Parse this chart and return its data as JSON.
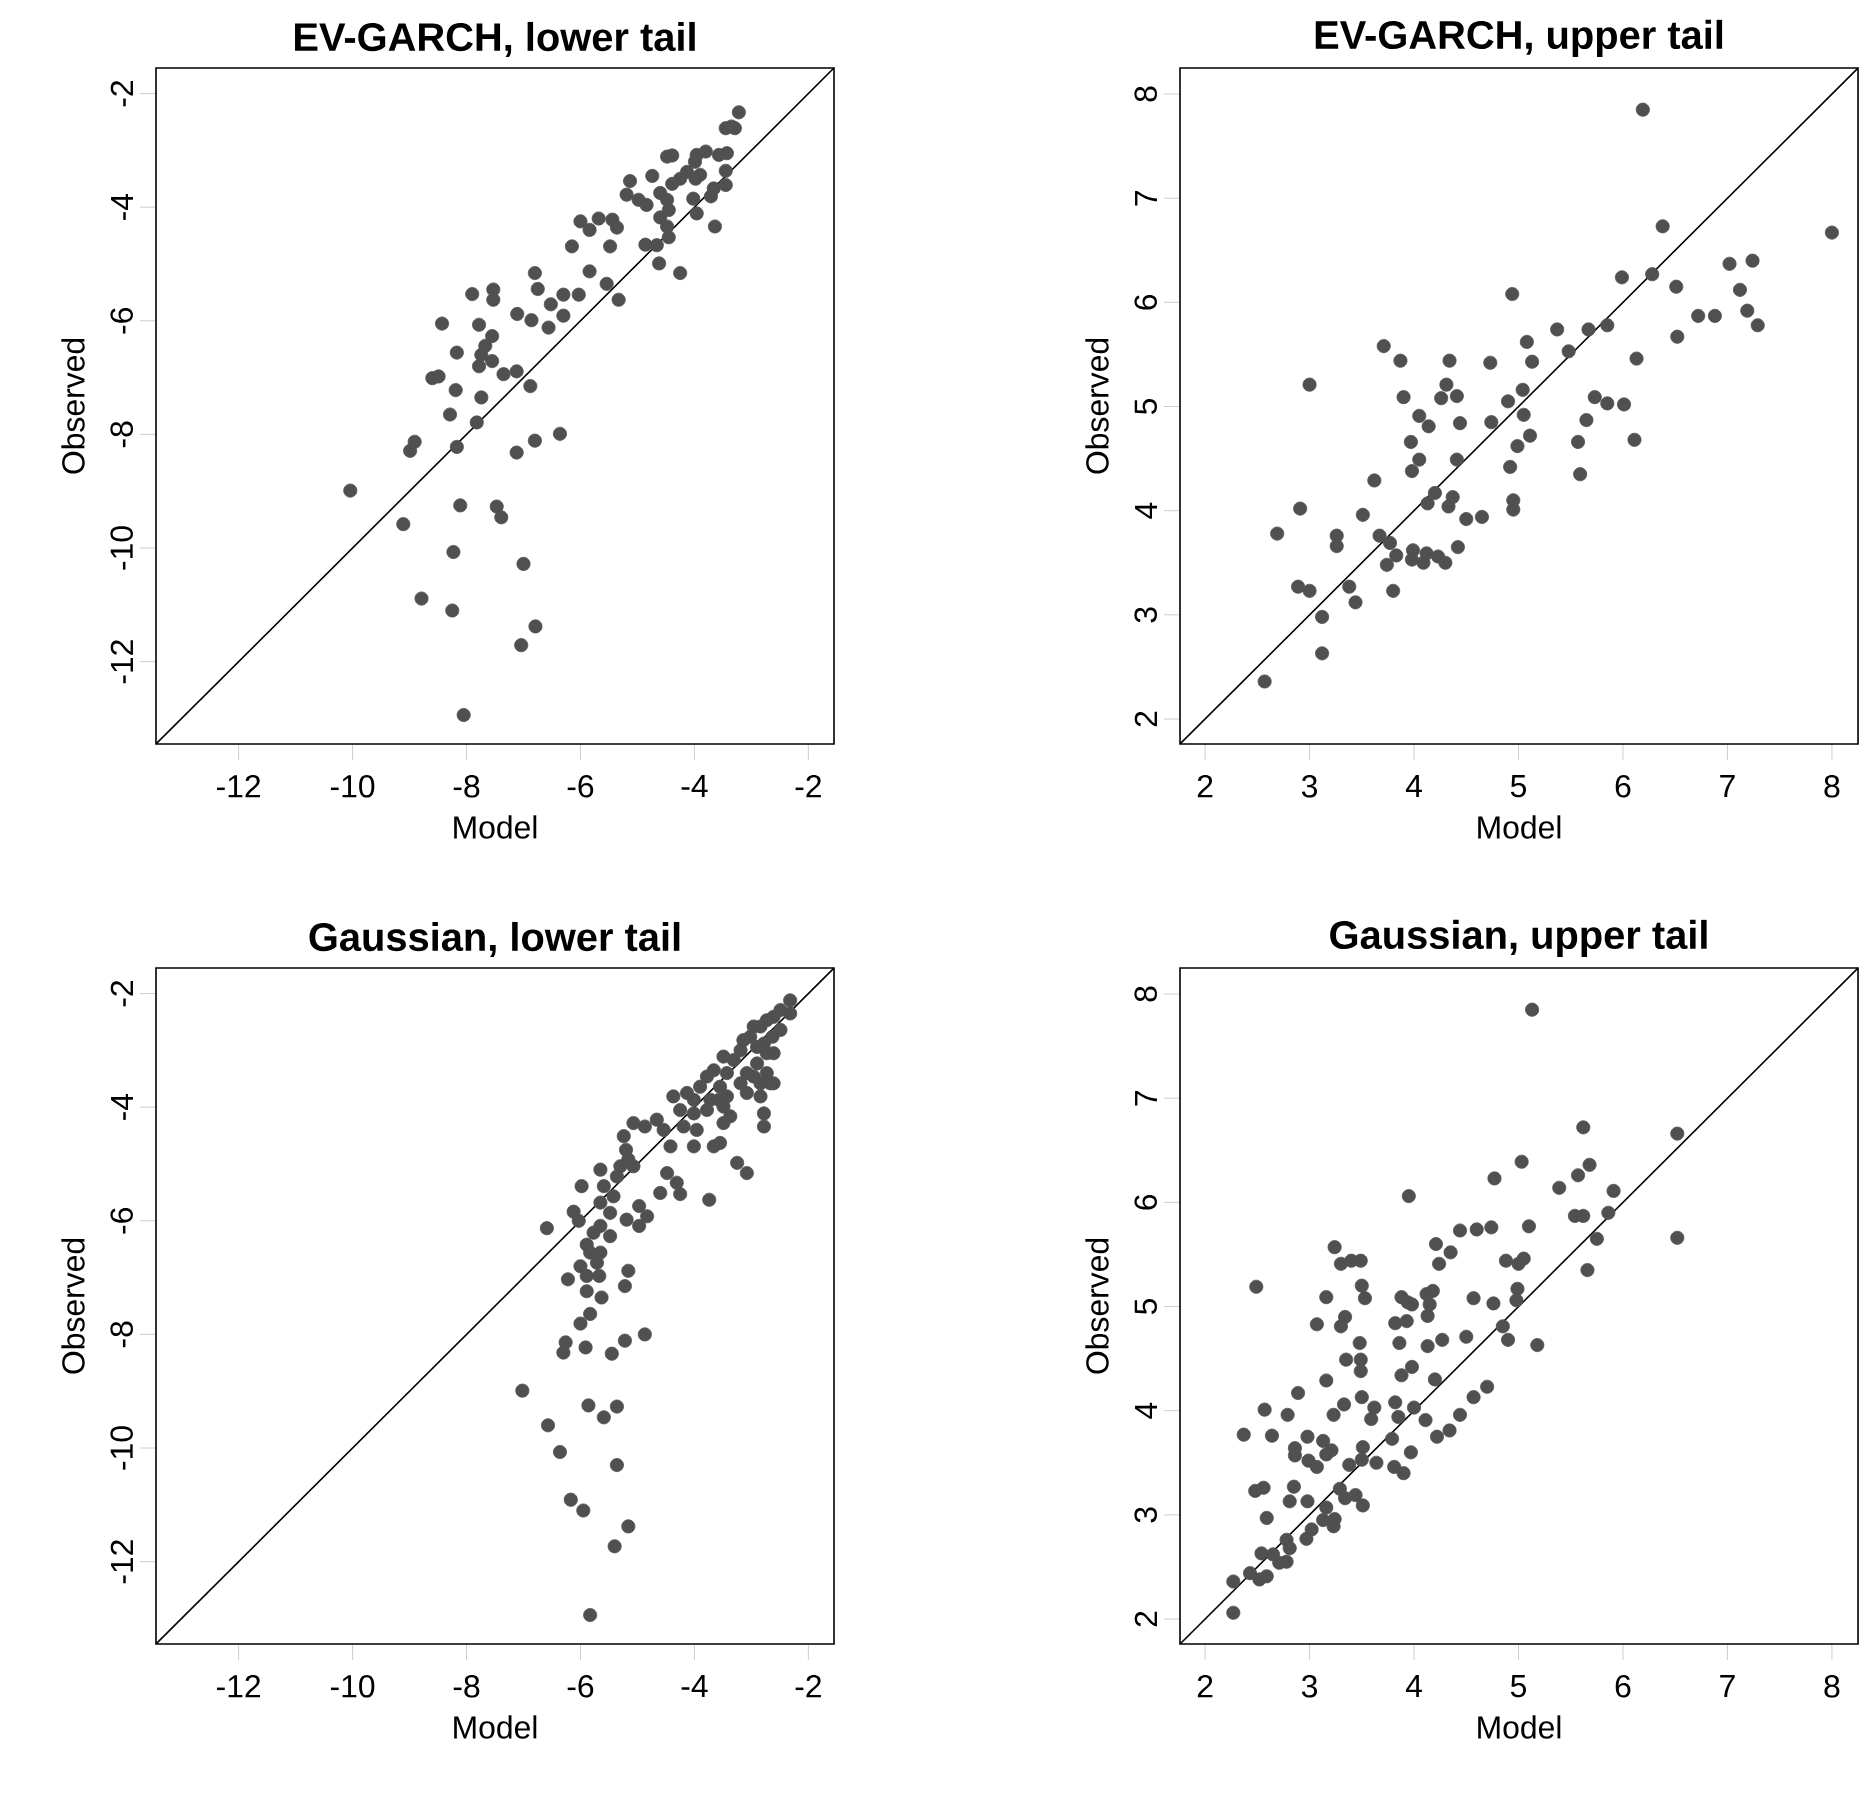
{
  "chart_data": [
    {
      "type": "scatter",
      "title": "EV-GARCH, lower tail",
      "xlabel": "Model",
      "ylabel": "Observed",
      "xlim": [
        -13.45,
        -1.55
      ],
      "ylim": [
        -13.45,
        -1.55
      ],
      "xticks": [
        -12,
        -10,
        -8,
        -6,
        -4,
        -2
      ],
      "yticks": [
        -12,
        -10,
        -8,
        -6,
        -4,
        -2
      ],
      "marker": "circle",
      "series": [
        {
          "color": "#505050",
          "x": [
            -3.22,
            -3.35,
            -3.45,
            -3.29,
            -3.43,
            -3.57,
            -3.8,
            -3.96,
            -3.99,
            -4.48,
            -4.39,
            -4.13,
            -3.9,
            -3.98,
            -4.25,
            -4.39,
            -4.74,
            -5.13,
            -5.19,
            -4.98,
            -4.84,
            -4.6,
            -4.48,
            -4.45,
            -4.02,
            -3.71,
            -3.45,
            -3.66,
            -3.96,
            -3.45,
            -3.64,
            -4.6,
            -4.48,
            -4.45,
            -4.66,
            -4.86,
            -4.62,
            -4.25,
            -6.0,
            -5.84,
            -5.68,
            -5.44,
            -5.36,
            -5.48,
            -6.15,
            -5.84,
            -5.54,
            -5.33,
            -6.03,
            -6.3,
            -6.8,
            -6.75,
            -6.52,
            -6.3,
            -6.56,
            -6.86,
            -7.11,
            -7.53,
            -7.53,
            -7.9,
            -7.78,
            -7.55,
            -7.67,
            -7.74,
            -7.78,
            -7.55,
            -7.35,
            -7.12,
            -8.43,
            -8.17,
            -8.6,
            -8.49,
            -8.19,
            -7.74,
            -6.88,
            -8.29,
            -7.82,
            -6.36,
            -6.8,
            -8.91,
            -8.99,
            -8.17,
            -7.12,
            -10.04,
            -9.11,
            -8.11,
            -7.47,
            -7.39,
            -8.23,
            -7.0,
            -8.79,
            -8.25,
            -6.79,
            -7.04,
            -8.05
          ],
          "values": [
            -2.33,
            -2.58,
            -2.61,
            -2.61,
            -3.05,
            -3.08,
            -3.02,
            -3.08,
            -3.2,
            -3.11,
            -3.09,
            -3.38,
            -3.43,
            -3.5,
            -3.5,
            -3.59,
            -3.45,
            -3.54,
            -3.78,
            -3.87,
            -3.96,
            -3.75,
            -3.87,
            -4.05,
            -3.85,
            -3.81,
            -3.61,
            -3.67,
            -4.11,
            -3.36,
            -4.34,
            -4.18,
            -4.34,
            -4.53,
            -4.67,
            -4.66,
            -4.99,
            -5.16,
            -4.25,
            -4.4,
            -4.2,
            -4.22,
            -4.36,
            -4.69,
            -4.69,
            -5.13,
            -5.35,
            -5.63,
            -5.54,
            -5.54,
            -5.16,
            -5.44,
            -5.71,
            -5.91,
            -6.12,
            -5.99,
            -5.88,
            -5.45,
            -5.63,
            -5.53,
            -6.07,
            -6.27,
            -6.44,
            -6.6,
            -6.8,
            -6.71,
            -6.94,
            -6.89,
            -6.05,
            -6.56,
            -7.01,
            -6.98,
            -7.22,
            -7.35,
            -7.15,
            -7.65,
            -7.79,
            -7.99,
            -8.11,
            -8.13,
            -8.29,
            -8.22,
            -8.32,
            -8.99,
            -9.58,
            -9.25,
            -9.27,
            -9.46,
            -10.07,
            -10.28,
            -10.89,
            -11.1,
            -11.38,
            -11.71,
            -12.94
          ]
        },
        {
          "type": "line",
          "color": "#000000",
          "marker": "none",
          "x": [
            -13.45,
            -1.55
          ],
          "values": [
            -13.45,
            -1.55
          ]
        }
      ]
    },
    {
      "type": "scatter",
      "title": "EV-GARCH, upper tail",
      "xlabel": "Model",
      "ylabel": "Observed",
      "xlim": [
        1.76,
        8.25
      ],
      "ylim": [
        1.76,
        8.25
      ],
      "xticks": [
        2,
        3,
        4,
        5,
        6,
        7,
        8
      ],
      "yticks": [
        2,
        3,
        4,
        5,
        6,
        7,
        8
      ],
      "marker": "circle",
      "series": [
        {
          "color": "#505050",
          "x": [
            6.19,
            6.38,
            8.0,
            7.24,
            7.02,
            6.28,
            5.99,
            6.51,
            7.12,
            4.94,
            7.19,
            6.72,
            6.88,
            7.29,
            5.37,
            5.67,
            5.85,
            5.48,
            5.08,
            5.13,
            4.73,
            6.13,
            6.52,
            3.71,
            3.87,
            4.34,
            3.0,
            4.31,
            4.26,
            4.41,
            3.9,
            5.04,
            4.9,
            5.73,
            5.85,
            6.01,
            4.05,
            4.14,
            4.44,
            4.74,
            5.05,
            5.11,
            4.99,
            5.65,
            5.57,
            6.11,
            5.59,
            3.97,
            4.05,
            3.98,
            4.41,
            4.92,
            3.62,
            4.2,
            4.13,
            4.37,
            4.33,
            4.95,
            4.95,
            4.65,
            4.5,
            3.51,
            2.91,
            2.69,
            3.26,
            3.67,
            3.77,
            3.83,
            3.74,
            3.26,
            3.99,
            3.98,
            4.09,
            4.12,
            4.23,
            4.3,
            4.42,
            2.89,
            3.0,
            3.38,
            3.44,
            3.8,
            3.12,
            3.12,
            2.57
          ],
          "values": [
            7.85,
            6.73,
            6.67,
            6.4,
            6.37,
            6.27,
            6.24,
            6.15,
            6.12,
            6.08,
            5.92,
            5.87,
            5.87,
            5.78,
            5.74,
            5.74,
            5.78,
            5.53,
            5.62,
            5.43,
            5.42,
            5.46,
            5.67,
            5.58,
            5.44,
            5.44,
            5.21,
            5.21,
            5.08,
            5.1,
            5.09,
            5.16,
            5.05,
            5.09,
            5.03,
            5.02,
            4.91,
            4.81,
            4.84,
            4.85,
            4.92,
            4.72,
            4.62,
            4.87,
            4.66,
            4.68,
            4.35,
            4.66,
            4.49,
            4.38,
            4.49,
            4.42,
            4.29,
            4.17,
            4.07,
            4.13,
            4.04,
            4.1,
            4.01,
            3.94,
            3.92,
            3.96,
            4.02,
            3.78,
            3.76,
            3.76,
            3.69,
            3.57,
            3.48,
            3.66,
            3.62,
            3.53,
            3.5,
            3.59,
            3.56,
            3.5,
            3.65,
            3.27,
            3.23,
            3.27,
            3.12,
            3.23,
            2.98,
            2.63,
            2.36
          ]
        },
        {
          "type": "line",
          "color": "#000000",
          "marker": "none",
          "x": [
            1.76,
            8.25
          ],
          "values": [
            1.76,
            8.25
          ]
        }
      ]
    },
    {
      "type": "scatter",
      "title": "Gaussian, lower tail",
      "xlabel": "Model",
      "ylabel": "Observed",
      "xlim": [
        -13.45,
        -1.55
      ],
      "ylim": [
        -13.45,
        -1.55
      ],
      "xticks": [
        -12,
        -10,
        -8,
        -6,
        -4,
        -2
      ],
      "yticks": [
        -12,
        -10,
        -8,
        -6,
        -4,
        -2
      ],
      "marker": "circle",
      "series": [
        {
          "color": "#505050",
          "x": [
            -2.32,
            -2.32,
            -2.49,
            -2.61,
            -2.73,
            -2.84,
            -2.96,
            -3.02,
            -3.14,
            -2.49,
            -2.63,
            -2.78,
            -2.61,
            -2.73,
            -2.9,
            -3.19,
            -3.31,
            -3.49,
            -2.9,
            -3.08,
            -2.73,
            -2.67,
            -2.84,
            -2.96,
            -2.84,
            -3.08,
            -3.19,
            -3.43,
            -3.66,
            -3.78,
            -3.9,
            -3.55,
            -3.43,
            -3.57,
            -3.72,
            -3.49,
            -3.37,
            -3.78,
            -4.01,
            -4.01,
            -4.13,
            -4.37,
            -4.25,
            -4.19,
            -3.96,
            -3.49,
            -3.55,
            -3.66,
            -4.01,
            -4.42,
            -4.54,
            -4.66,
            -4.87,
            -5.07,
            -3.25,
            -3.08,
            -2.78,
            -2.78,
            -2.61,
            -4.48,
            -4.31,
            -4.25,
            -4.6,
            -3.74,
            -5.24,
            -5.2,
            -5.16,
            -5.3,
            -5.36,
            -5.07,
            -5.65,
            -5.59,
            -5.42,
            -5.65,
            -5.98,
            -5.48,
            -5.19,
            -4.97,
            -4.83,
            -4.97,
            -6.12,
            -6.03,
            -6.59,
            -5.65,
            -5.77,
            -5.89,
            -5.83,
            -5.65,
            -5.48,
            -6.0,
            -5.89,
            -5.71,
            -5.67,
            -6.22,
            -5.89,
            -5.63,
            -5.22,
            -5.16,
            -5.83,
            -6.0,
            -6.26,
            -6.3,
            -5.91,
            -5.45,
            -5.22,
            -4.87,
            -7.02,
            -6.57,
            -5.86,
            -5.36,
            -5.59,
            -6.36,
            -5.36,
            -6.17,
            -5.95,
            -5.16,
            -5.4,
            -5.83
          ],
          "values": [
            -2.12,
            -2.35,
            -2.29,
            -2.41,
            -2.47,
            -2.58,
            -2.58,
            -2.76,
            -2.82,
            -2.64,
            -2.76,
            -2.88,
            -3.05,
            -3.05,
            -2.94,
            -3.0,
            -3.17,
            -3.11,
            -3.23,
            -3.4,
            -3.4,
            -3.58,
            -3.58,
            -3.46,
            -3.81,
            -3.75,
            -3.58,
            -3.4,
            -3.35,
            -3.46,
            -3.64,
            -3.64,
            -3.81,
            -3.87,
            -3.87,
            -3.99,
            -4.16,
            -4.05,
            -3.87,
            -4.11,
            -3.75,
            -3.81,
            -4.05,
            -4.34,
            -4.4,
            -4.28,
            -4.63,
            -4.69,
            -4.69,
            -4.69,
            -4.4,
            -4.22,
            -4.34,
            -4.28,
            -4.98,
            -5.16,
            -4.11,
            -4.34,
            -3.58,
            -5.16,
            -5.33,
            -5.53,
            -5.51,
            -5.63,
            -4.51,
            -4.75,
            -4.92,
            -5.04,
            -5.22,
            -5.04,
            -5.1,
            -5.39,
            -5.57,
            -5.68,
            -5.39,
            -5.86,
            -5.98,
            -5.74,
            -5.92,
            -6.09,
            -5.84,
            -6.0,
            -6.13,
            -6.09,
            -6.21,
            -6.42,
            -6.56,
            -6.56,
            -6.27,
            -6.8,
            -6.97,
            -6.74,
            -6.97,
            -7.03,
            -7.24,
            -7.35,
            -7.15,
            -6.88,
            -7.64,
            -7.81,
            -8.14,
            -8.32,
            -8.23,
            -8.34,
            -8.11,
            -8.0,
            -8.99,
            -9.6,
            -9.25,
            -9.27,
            -9.46,
            -10.07,
            -10.3,
            -10.91,
            -11.1,
            -11.38,
            -11.73,
            -12.94
          ]
        },
        {
          "type": "line",
          "color": "#000000",
          "marker": "none",
          "x": [
            -13.45,
            -1.55
          ],
          "values": [
            -13.45,
            -1.55
          ]
        }
      ]
    },
    {
      "type": "scatter",
      "title": "Gaussian, upper tail",
      "xlabel": "Model",
      "ylabel": "Observed",
      "xlim": [
        1.76,
        8.25
      ],
      "ylim": [
        1.76,
        8.25
      ],
      "xticks": [
        2,
        3,
        4,
        5,
        6,
        7,
        8
      ],
      "yticks": [
        2,
        3,
        4,
        5,
        6,
        7,
        8
      ],
      "marker": "circle",
      "series": [
        {
          "color": "#505050",
          "x": [
            5.13,
            5.62,
            6.52,
            5.03,
            5.68,
            5.57,
            4.77,
            5.39,
            5.91,
            3.95,
            5.86,
            5.54,
            5.62,
            4.74,
            5.1,
            4.44,
            4.6,
            5.75,
            6.52,
            4.21,
            4.35,
            4.24,
            3.24,
            3.3,
            3.4,
            3.49,
            4.88,
            5.0,
            5.05,
            5.66,
            2.49,
            3.16,
            3.53,
            3.5,
            3.88,
            3.94,
            3.98,
            4.12,
            4.18,
            4.15,
            4.13,
            4.57,
            4.76,
            4.99,
            4.98,
            3.07,
            3.34,
            3.3,
            3.48,
            3.82,
            3.93,
            3.86,
            4.13,
            4.27,
            4.5,
            4.85,
            4.9,
            5.18,
            3.35,
            3.49,
            3.49,
            3.88,
            3.98,
            4.2,
            3.16,
            2.89,
            3.5,
            3.33,
            3.62,
            3.59,
            3.82,
            3.85,
            4.0,
            4.11,
            4.57,
            4.7,
            4.44,
            4.34,
            4.22,
            2.57,
            2.79,
            3.23,
            2.37,
            2.64,
            2.98,
            3.13,
            2.86,
            3.21,
            3.16,
            2.86,
            2.99,
            3.07,
            3.38,
            3.51,
            3.5,
            3.64,
            3.79,
            3.81,
            3.9,
            3.97,
            2.48,
            2.56,
            2.85,
            2.81,
            2.98,
            3.29,
            3.34,
            3.44,
            3.51,
            2.59,
            3.16,
            3.13,
            3.23,
            3.24,
            2.97,
            3.02,
            2.78,
            2.81,
            2.54,
            2.65,
            2.71,
            2.78,
            2.43,
            2.52,
            2.59,
            2.27,
            2.27
          ],
          "values": [
            7.85,
            6.72,
            6.66,
            6.39,
            6.36,
            6.26,
            6.23,
            6.14,
            6.11,
            6.06,
            5.9,
            5.87,
            5.87,
            5.76,
            5.77,
            5.73,
            5.74,
            5.65,
            5.66,
            5.6,
            5.52,
            5.41,
            5.57,
            5.41,
            5.44,
            5.44,
            5.44,
            5.41,
            5.46,
            5.35,
            5.19,
            5.09,
            5.08,
            5.2,
            5.09,
            5.04,
            5.02,
            5.12,
            5.15,
            5.02,
            4.91,
            5.08,
            5.03,
            5.17,
            5.06,
            4.83,
            4.9,
            4.81,
            4.65,
            4.84,
            4.86,
            4.65,
            4.62,
            4.68,
            4.71,
            4.81,
            4.68,
            4.63,
            4.49,
            4.49,
            4.38,
            4.34,
            4.42,
            4.3,
            4.29,
            4.17,
            4.13,
            4.06,
            4.03,
            3.92,
            4.08,
            3.94,
            4.03,
            3.91,
            4.13,
            4.23,
            3.96,
            3.81,
            3.75,
            4.01,
            3.96,
            3.96,
            3.77,
            3.76,
            3.75,
            3.71,
            3.64,
            3.62,
            3.58,
            3.57,
            3.52,
            3.46,
            3.48,
            3.65,
            3.53,
            3.5,
            3.73,
            3.46,
            3.4,
            3.6,
            3.23,
            3.26,
            3.27,
            3.13,
            3.13,
            3.25,
            3.16,
            3.19,
            3.09,
            2.97,
            3.07,
            2.95,
            2.89,
            2.96,
            2.77,
            2.86,
            2.76,
            2.68,
            2.63,
            2.62,
            2.54,
            2.55,
            2.44,
            2.38,
            2.41,
            2.36,
            2.06
          ]
        },
        {
          "type": "line",
          "color": "#000000",
          "marker": "none",
          "x": [
            1.76,
            8.25
          ],
          "values": [
            1.76,
            8.25
          ]
        }
      ]
    }
  ]
}
